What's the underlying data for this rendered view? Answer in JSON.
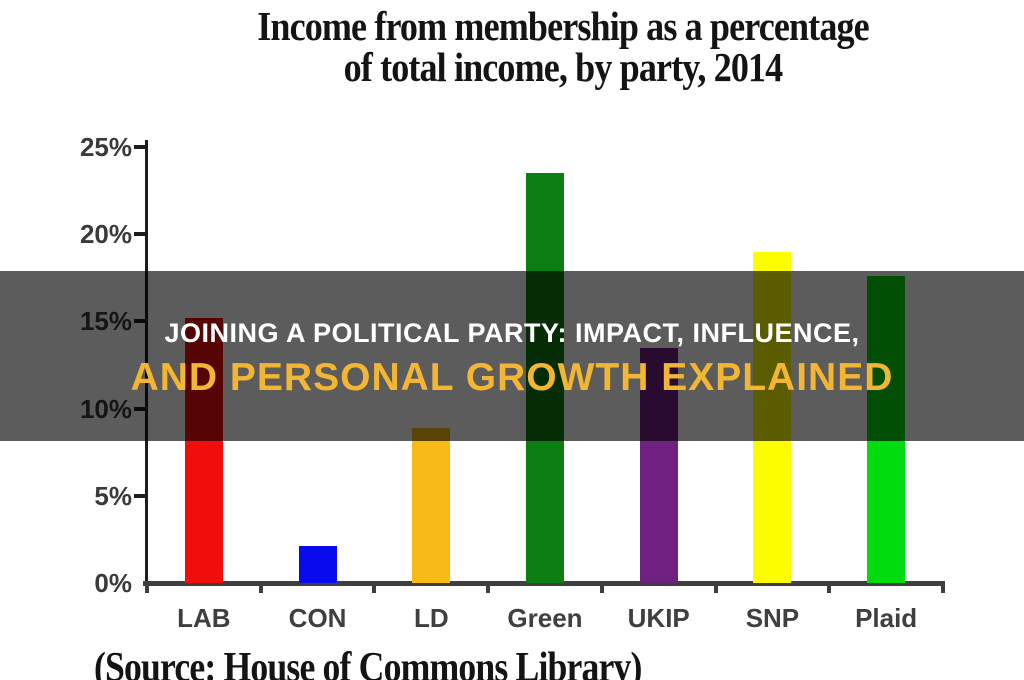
{
  "title": {
    "line1": "Income from membership as a percentage",
    "line2": "of total income, by party, 2014"
  },
  "banner": {
    "line1": "JOINING A POLITICAL PARTY: IMPACT, INFLUENCE,",
    "line2": "AND PERSONAL GROWTH EXPLAINED",
    "line1_color": "#ffffff",
    "line2_color": "#f2b634",
    "overlay_color": "rgba(0,0,0,0.64)"
  },
  "source_note": "(Source: House of Commons Library)",
  "chart_data": {
    "type": "bar",
    "title": "Income from membership as a percentage of total income, by party, 2014",
    "categories": [
      "LAB",
      "CON",
      "LD",
      "Green",
      "UKIP",
      "SNP",
      "Plaid"
    ],
    "values": [
      15.2,
      2.1,
      8.9,
      23.5,
      13.5,
      19,
      17.6
    ],
    "bar_colors": [
      "#f20d0d",
      "#0a0aee",
      "#f8ba17",
      "#0c7e12",
      "#6f2180",
      "#fdfd00",
      "#00dc0e"
    ],
    "y_ticks": [
      0,
      5,
      10,
      15,
      20,
      25
    ],
    "y_tick_labels": [
      "0%",
      "5%",
      "10%",
      "15%",
      "20%",
      "25%"
    ],
    "ylim": [
      0,
      25
    ],
    "xlabel": "",
    "ylabel": "",
    "grid": false,
    "legend": false
  }
}
